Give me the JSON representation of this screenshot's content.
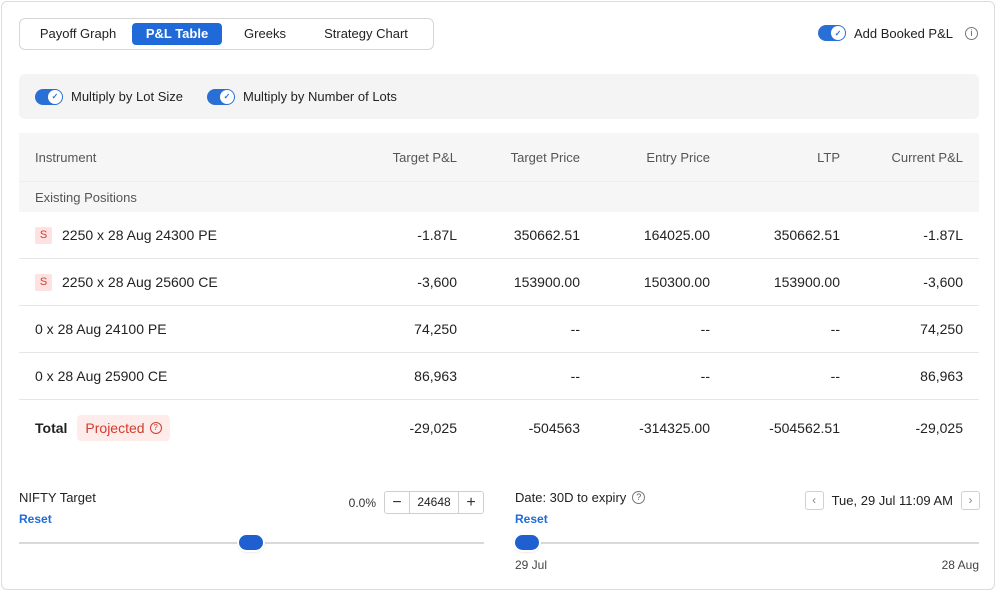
{
  "tabs": [
    "Payoff Graph",
    "P&L Table",
    "Greeks",
    "Strategy Chart"
  ],
  "active_tab": "P&L Table",
  "booked_pnl_label": "Add Booked P&L",
  "multipliers": {
    "lot_size": "Multiply by Lot Size",
    "num_lots": "Multiply by Number of Lots"
  },
  "table": {
    "headers": {
      "instrument": "Instrument",
      "target_pnl": "Target P&L",
      "target_price": "Target Price",
      "entry_price": "Entry Price",
      "ltp": "LTP",
      "current_pnl": "Current P&L"
    },
    "group_label": "Existing Positions",
    "rows": [
      {
        "badge": "S",
        "instrument": "2250 x 28 Aug 24300 PE",
        "target_pnl": "-1.87L",
        "target_price": "350662.51",
        "entry_price": "164025.00",
        "ltp": "350662.51",
        "current_pnl": "-1.87L"
      },
      {
        "badge": "S",
        "instrument": "2250 x 28 Aug 25600 CE",
        "target_pnl": "-3,600",
        "target_price": "153900.00",
        "entry_price": "150300.00",
        "ltp": "153900.00",
        "current_pnl": "-3,600"
      },
      {
        "badge": "",
        "instrument": "0 x 28 Aug 24100 PE",
        "target_pnl": "74,250",
        "target_price": "--",
        "entry_price": "--",
        "ltp": "--",
        "current_pnl": "74,250"
      },
      {
        "badge": "",
        "instrument": "0 x 28 Aug 25900 CE",
        "target_pnl": "86,963",
        "target_price": "--",
        "entry_price": "--",
        "ltp": "--",
        "current_pnl": "86,963"
      }
    ],
    "total": {
      "label": "Total",
      "badge": "Projected",
      "target_pnl": "-29,025",
      "target_price": "-504563",
      "entry_price": "-314325.00",
      "ltp": "-504562.51",
      "current_pnl": "-29,025"
    }
  },
  "nifty": {
    "label": "NIFTY Target",
    "reset": "Reset",
    "pct": "0.0%",
    "value": "24648",
    "minus": "−",
    "plus": "+"
  },
  "date": {
    "label": "Date: 30D to expiry",
    "reset": "Reset",
    "datetime": "Tue, 29 Jul 11:09 AM",
    "start": "29 Jul",
    "end": "28 Aug"
  },
  "colors": {
    "accent": "#1f6ad8",
    "negative_badge": "#d23b2e"
  },
  "icons": {
    "info": "info-icon",
    "help": "question-circle-icon",
    "prev": "chevron-left-icon",
    "next": "chevron-right-icon"
  }
}
